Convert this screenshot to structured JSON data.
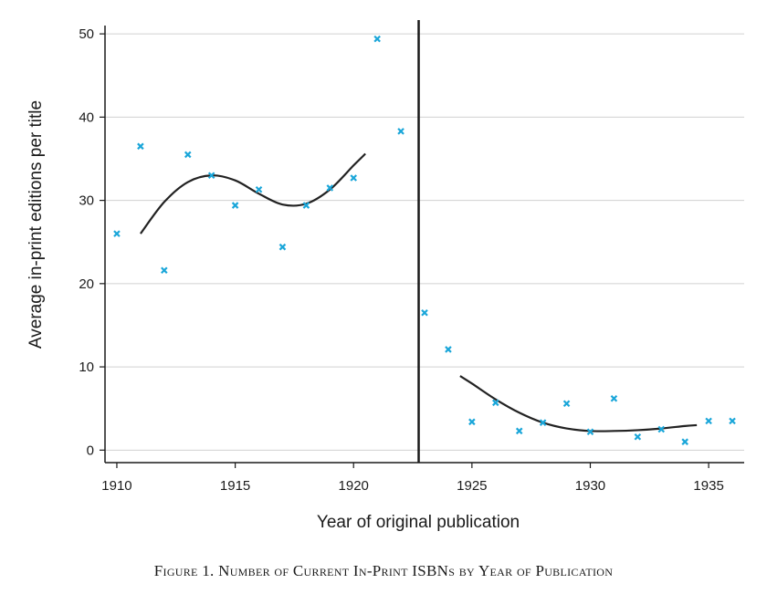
{
  "caption": "Figure 1. Number of Current In-Print ISBNs by Year of Publication",
  "chart_data": {
    "type": "scatter",
    "xlabel": "Year of original publication",
    "ylabel": "Average in-print editions per title",
    "xlim": [
      1909.5,
      1936.5
    ],
    "ylim": [
      -1.5,
      51
    ],
    "xticks": [
      1910,
      1915,
      1920,
      1925,
      1930,
      1935
    ],
    "yticks": [
      0,
      10,
      20,
      30,
      40,
      50
    ],
    "grid": "horizontal",
    "marker_color": "#1aa6d9",
    "line_color": "#222222",
    "cutoff_year": 1922.75,
    "points": [
      {
        "x": 1910,
        "y": 26.0
      },
      {
        "x": 1911,
        "y": 36.5
      },
      {
        "x": 1912,
        "y": 21.6
      },
      {
        "x": 1913,
        "y": 35.5
      },
      {
        "x": 1914,
        "y": 33.0
      },
      {
        "x": 1915,
        "y": 29.4
      },
      {
        "x": 1916,
        "y": 31.3
      },
      {
        "x": 1917,
        "y": 24.4
      },
      {
        "x": 1918,
        "y": 29.4
      },
      {
        "x": 1919,
        "y": 31.5
      },
      {
        "x": 1920,
        "y": 32.7
      },
      {
        "x": 1921,
        "y": 49.4
      },
      {
        "x": 1922,
        "y": 38.3
      },
      {
        "x": 1923,
        "y": 16.5
      },
      {
        "x": 1924,
        "y": 12.1
      },
      {
        "x": 1925,
        "y": 3.4
      },
      {
        "x": 1926,
        "y": 5.7
      },
      {
        "x": 1927,
        "y": 2.3
      },
      {
        "x": 1928,
        "y": 3.3
      },
      {
        "x": 1929,
        "y": 5.6
      },
      {
        "x": 1930,
        "y": 2.2
      },
      {
        "x": 1931,
        "y": 6.2
      },
      {
        "x": 1932,
        "y": 1.6
      },
      {
        "x": 1933,
        "y": 2.5
      },
      {
        "x": 1934,
        "y": 1.0
      },
      {
        "x": 1935,
        "y": 3.5
      },
      {
        "x": 1936,
        "y": 3.5
      }
    ],
    "fit_lines": [
      {
        "x": [
          1911,
          1912,
          1913,
          1914,
          1915,
          1916,
          1917,
          1918,
          1919,
          1920,
          1920.5
        ],
        "y": [
          26.0,
          29.8,
          32.2,
          33.0,
          32.4,
          30.8,
          29.5,
          29.6,
          31.3,
          34.2,
          35.6
        ]
      },
      {
        "x": [
          1924.5,
          1925,
          1926,
          1927,
          1928,
          1929,
          1930,
          1931,
          1932,
          1933,
          1934,
          1934.5
        ],
        "y": [
          8.9,
          8.0,
          6.1,
          4.5,
          3.3,
          2.6,
          2.3,
          2.3,
          2.4,
          2.6,
          2.9,
          3.0
        ]
      }
    ]
  }
}
